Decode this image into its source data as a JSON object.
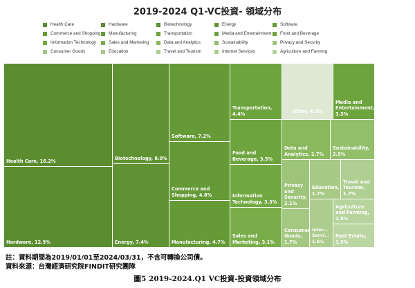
{
  "chart_data": {
    "type": "treemap",
    "title": "2019-2024 Q1-VC投資- 領域分布",
    "legend_position": "top",
    "items": [
      {
        "name": "Health Care",
        "label": "Health Care, 16.2%",
        "value": 16.2,
        "color": "#5b8c30"
      },
      {
        "name": "Hardware",
        "label": "Hardware, 12.9%",
        "value": 12.9,
        "color": "#5b8c30"
      },
      {
        "name": "Biotechnology",
        "label": "Biotechnology, 8.0%",
        "value": 8.0,
        "color": "#5f9232"
      },
      {
        "name": "Energy",
        "label": "Energy, 7.4%",
        "value": 7.4,
        "color": "#5f9232"
      },
      {
        "name": "Software",
        "label": "Software, 7.2%",
        "value": 7.2,
        "color": "#659a36"
      },
      {
        "name": "Commerce and Shopping",
        "label": "Commerce and Shopping, 4.8%",
        "value": 4.8,
        "color": "#659a36"
      },
      {
        "name": "Manufacturing",
        "label": "Manufacturing, 4.7%",
        "value": 4.7,
        "color": "#659a36"
      },
      {
        "name": "Transportation",
        "label": "Transportation, 4.4%",
        "value": 4.4,
        "color": "#6ea43d"
      },
      {
        "name": "Food and Beverage",
        "label": "Food and Beverage, 3.5%",
        "value": 3.5,
        "color": "#6ea43d"
      },
      {
        "name": "Information Technology",
        "label": "Information Technology, 3.3%",
        "value": 3.3,
        "color": "#72a841"
      },
      {
        "name": "Sales and Marketing",
        "label": "Sales and Marketing, 3.1%",
        "value": 3.1,
        "color": "#79ad49"
      },
      {
        "name": "Other",
        "label": "Other, 4.3%",
        "value": 4.3,
        "color": "#dfe8d3"
      },
      {
        "name": "Media and Entertainment",
        "label": "Media and Entertainment, 3.5%",
        "value": 3.5,
        "color": "#6ea43d"
      },
      {
        "name": "Data and Analytics",
        "label": "Data and Analytics, 2.7%",
        "value": 2.7,
        "color": "#89b85d"
      },
      {
        "name": "Sustainability",
        "label": "Sustainability, 2.5%",
        "value": 2.5,
        "color": "#93be6a"
      },
      {
        "name": "Privacy and Security",
        "label": "Privacy and Security, 2.1%",
        "value": 2.1,
        "color": "#9dc479"
      },
      {
        "name": "Education",
        "label": "Education, 1.7%",
        "value": 1.7,
        "color": "#a7ca86"
      },
      {
        "name": "Travel and Tourism",
        "label": "Travel and Tourism, 1.7%",
        "value": 1.7,
        "color": "#b0cf93"
      },
      {
        "name": "Agriculture and Farming",
        "label": "Agriculture and Farming, 1.5%",
        "value": 1.5,
        "color": "#b8d49e"
      },
      {
        "name": "Consumer Goods",
        "label": "Consumer Goods, 1.7%",
        "value": 1.7,
        "color": "#a4c882"
      },
      {
        "name": "Internet Services",
        "label": "Inter... Servi... 1.6%",
        "value": 1.6,
        "color": "#adcd8f"
      },
      {
        "name": "Real Estate",
        "label": "Real Estate, 1.5%",
        "value": 1.5,
        "color": "#bcd6a3"
      }
    ],
    "legend": [
      {
        "name": "Health Care",
        "color": "#5b8c30"
      },
      {
        "name": "Hardware",
        "color": "#5b8c30"
      },
      {
        "name": "Biotechnology",
        "color": "#5f9232"
      },
      {
        "name": "Energy",
        "color": "#5f9232"
      },
      {
        "name": "Software",
        "color": "#659a36"
      },
      {
        "name": "Commerce and Shopping",
        "color": "#659a36"
      },
      {
        "name": "Manufacturing",
        "color": "#659a36"
      },
      {
        "name": "Transportation",
        "color": "#6ea43d"
      },
      {
        "name": "Media and Entertainment",
        "color": "#6ea43d"
      },
      {
        "name": "Food and Beverage",
        "color": "#6ea43d"
      },
      {
        "name": "Information Technology",
        "color": "#72a841"
      },
      {
        "name": "Sales and Marketing",
        "color": "#79ad49"
      },
      {
        "name": "Data and Analytics",
        "color": "#89b85d"
      },
      {
        "name": "Sustainability",
        "color": "#93be6a"
      },
      {
        "name": "Privacy and Security",
        "color": "#9dc479"
      },
      {
        "name": "Consumer Goods",
        "color": "#a4c882"
      },
      {
        "name": "Education",
        "color": "#a7ca86"
      },
      {
        "name": "Travel and Tourism",
        "color": "#b0cf93"
      },
      {
        "name": "Internet Services",
        "color": "#adcd8f"
      },
      {
        "name": "Agriculture and Farming",
        "color": "#b8d49e"
      }
    ]
  },
  "notes": {
    "period": "註：資料期間為2019/01/01至2024/03/31，不含可轉換公司債。",
    "source": "資料來源：台灣經濟研究院FINDIT研究團隊"
  },
  "caption": "圖5  2019-2024.Q1 VC投資-投資領域分布"
}
